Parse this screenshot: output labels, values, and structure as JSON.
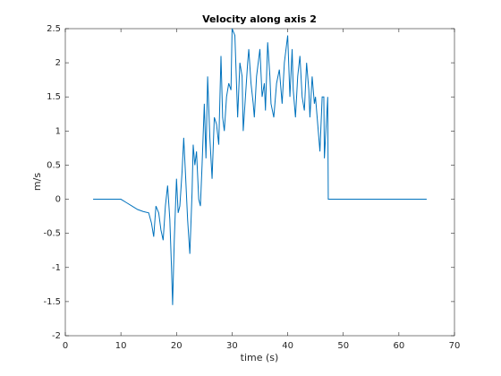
{
  "chart_data": {
    "type": "line",
    "title": "Velocity along axis 2",
    "x_label": "time (s)",
    "y_label": "m/s",
    "color": "#0072bd",
    "x": [
      5,
      10,
      11,
      12,
      13,
      14,
      15,
      15.5,
      15.9,
      16.3,
      16.8,
      17.2,
      17.6,
      18,
      18.4,
      18.8,
      19.1,
      19.3,
      19.6,
      20,
      20.3,
      20.6,
      21,
      21.3,
      21.6,
      22,
      22.4,
      22.8,
      23,
      23.3,
      23.6,
      24,
      24.3,
      24.6,
      25,
      25.3,
      25.6,
      26,
      26.4,
      26.8,
      27.2,
      27.6,
      28,
      28.3,
      28.6,
      29,
      29.4,
      29.8,
      30,
      30.5,
      31,
      31.4,
      31.8,
      32,
      32.4,
      32.8,
      33,
      33.4,
      33.8,
      34,
      34.4,
      35,
      35.4,
      35.8,
      36,
      36.4,
      36.8,
      37,
      37.5,
      38,
      38.5,
      39,
      39.4,
      40,
      40.4,
      40.8,
      41,
      41.4,
      41.8,
      42.2,
      42.6,
      43,
      43.4,
      43.8,
      44,
      44.4,
      44.8,
      45,
      45.4,
      45.8,
      46.2,
      46.5,
      46.6,
      46.8,
      47.2,
      47.3,
      65
    ],
    "values": [
      0,
      0,
      -0.05,
      -0.1,
      -0.15,
      -0.18,
      -0.2,
      -0.35,
      -0.55,
      -0.1,
      -0.2,
      -0.45,
      -0.6,
      -0.1,
      0.2,
      -0.3,
      -1.0,
      -1.55,
      -0.6,
      0.3,
      -0.2,
      -0.1,
      0.4,
      0.9,
      0.4,
      -0.3,
      -0.8,
      0.1,
      0.8,
      0.5,
      0.7,
      0.0,
      -0.1,
      0.5,
      1.4,
      0.6,
      1.8,
      0.9,
      0.3,
      1.2,
      1.1,
      0.8,
      2.1,
      1.2,
      1.0,
      1.5,
      1.7,
      1.6,
      2.5,
      2.4,
      1.2,
      2.0,
      1.8,
      1.0,
      1.5,
      2.0,
      2.2,
      1.7,
      1.4,
      1.2,
      1.8,
      2.2,
      1.5,
      1.7,
      1.3,
      2.3,
      1.8,
      1.4,
      1.2,
      1.7,
      1.9,
      1.4,
      2.0,
      2.4,
      1.5,
      2.2,
      1.6,
      1.2,
      1.8,
      2.1,
      1.5,
      1.3,
      2.0,
      1.6,
      1.2,
      1.8,
      1.4,
      1.5,
      1.1,
      0.7,
      1.5,
      1.5,
      0.6,
      0.9,
      1.5,
      0.0,
      0
    ],
    "xlim": [
      0,
      70
    ],
    "ylim": [
      -2,
      2.5
    ],
    "xticks": [
      0,
      10,
      20,
      30,
      40,
      50,
      60,
      70
    ],
    "yticks": [
      -2,
      -1.5,
      -1,
      -0.5,
      0,
      0.5,
      1,
      1.5,
      2,
      2.5
    ],
    "grid": false
  }
}
